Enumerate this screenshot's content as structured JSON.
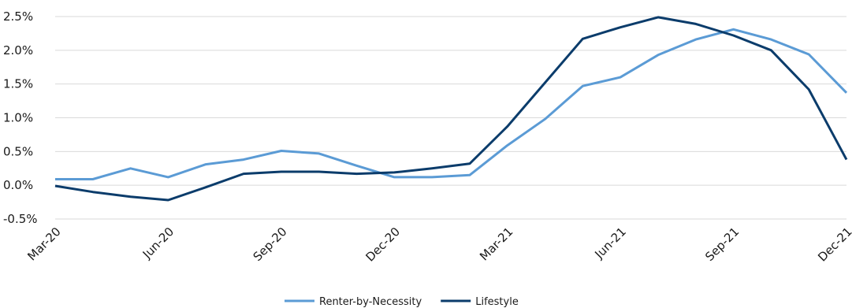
{
  "chart_data": {
    "type": "line",
    "title": "",
    "xlabel": "",
    "ylabel": "",
    "x": [
      "Mar-20",
      "Apr-20",
      "May-20",
      "Jun-20",
      "Jul-20",
      "Aug-20",
      "Sep-20",
      "Oct-20",
      "Nov-20",
      "Dec-20",
      "Jan-21",
      "Feb-21",
      "Mar-21",
      "Apr-21",
      "May-21",
      "Jun-21",
      "Jul-21",
      "Aug-21",
      "Sep-21",
      "Oct-21",
      "Nov-21",
      "Dec-21"
    ],
    "x_tick_labels": [
      "Mar-20",
      "Jun-20",
      "Sep-20",
      "Dec-20",
      "Mar-21",
      "Jun-21",
      "Sep-21",
      "Dec-21"
    ],
    "y_ticks": [
      -0.5,
      0.0,
      0.5,
      1.0,
      1.5,
      2.0,
      2.5
    ],
    "y_tick_labels": [
      "-0.5%",
      "0.0%",
      "0.5%",
      "1.0%",
      "1.5%",
      "2.0%",
      "2.5%"
    ],
    "ylim": [
      -0.5,
      2.5
    ],
    "grid": "horizontal",
    "legend_position": "bottom-center",
    "series": [
      {
        "name": "Renter-by-Necessity",
        "color": "#5b9bd5",
        "values": [
          0.09,
          0.09,
          0.25,
          0.12,
          0.31,
          0.38,
          0.51,
          0.47,
          0.29,
          0.12,
          0.12,
          0.15,
          0.59,
          0.98,
          1.47,
          1.6,
          1.93,
          2.16,
          2.31,
          2.16,
          1.94,
          1.37
        ]
      },
      {
        "name": "Lifestyle",
        "color": "#0b3c6b",
        "values": [
          -0.01,
          -0.1,
          -0.17,
          -0.22,
          -0.03,
          0.17,
          0.2,
          0.2,
          0.17,
          0.19,
          0.25,
          0.32,
          0.87,
          1.52,
          2.17,
          2.34,
          2.49,
          2.39,
          2.22,
          2.0,
          1.42,
          0.38
        ]
      }
    ]
  }
}
